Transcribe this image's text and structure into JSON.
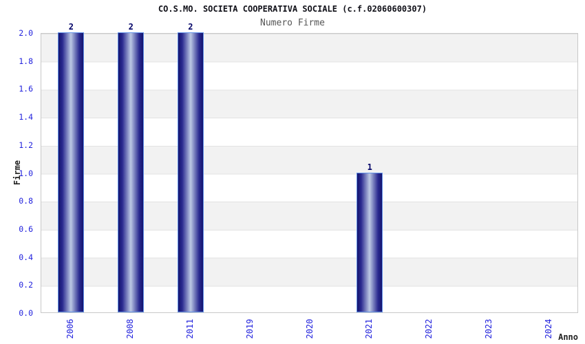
{
  "page": {
    "background": "#ffffff"
  },
  "chart_data": {
    "type": "bar",
    "title": "CO.S.MO. SOCIETA COOPERATIVA SOCIALE (c.f.02060600307)",
    "subtitle": "Numero Firme",
    "xlabel": "Anno",
    "ylabel": "Firme",
    "categories": [
      "2006",
      "2008",
      "2011",
      "2019",
      "2020",
      "2021",
      "2022",
      "2023",
      "2024"
    ],
    "values": [
      2,
      2,
      2,
      0,
      0,
      1,
      0,
      0,
      0
    ],
    "bar_value_labels": [
      "2",
      "2",
      "2",
      "",
      "",
      "1",
      "",
      "",
      ""
    ],
    "ylim": [
      0.0,
      2.0
    ],
    "ytick_step": 0.2,
    "ytick_labels": [
      "0.0",
      "0.2",
      "0.4",
      "0.6",
      "0.8",
      "1.0",
      "1.2",
      "1.4",
      "1.6",
      "1.8",
      "2.0"
    ],
    "grid": "horizontal-bands-alternating",
    "legend": "none",
    "colors": {
      "tick_label": "#2222dd",
      "bar_value_label": "#000066",
      "title": "#101018",
      "subtitle": "#555555",
      "axis_title": "#222222",
      "band_gray": "#f2f2f2",
      "band_white": "#ffffff",
      "grid_line": "#e2e2e2",
      "plot_border": "#c8c8c8",
      "bar_dark": "#14146e",
      "bar_mid": "#2a2a90",
      "bar_light": "#bcc8e4",
      "bar_border": "#6292e8"
    }
  }
}
